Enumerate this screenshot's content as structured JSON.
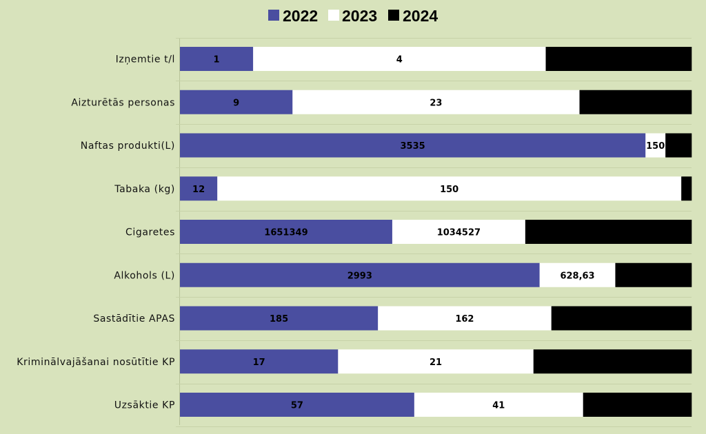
{
  "chart_data": {
    "type": "bar",
    "orientation": "horizontal",
    "stacked": "100%",
    "legend_position": "top",
    "grid": true,
    "categories": [
      "Izņemtie t/l",
      "Aizturētās personas",
      "Naftas produkti(L)",
      "Tabaka (kg)",
      "Cigaretes",
      "Alkohols (L)",
      "Sastādītie APAS",
      "Kriminālvajāšanai nosūtītie KP",
      "Uzsāktie KP"
    ],
    "series": [
      {
        "name": "2022",
        "color": "#4a4ea0",
        "shares": [
          0.143,
          0.22,
          0.91,
          0.073,
          0.415,
          0.703,
          0.387,
          0.309,
          0.458
        ],
        "labels": [
          "1",
          "9",
          "3535",
          "12",
          "1651349",
          "2993",
          "185",
          "17",
          "57"
        ]
      },
      {
        "name": "2023",
        "color": "#ffffff",
        "shares": [
          0.572,
          0.561,
          0.039,
          0.907,
          0.26,
          0.148,
          0.339,
          0.382,
          0.33
        ],
        "labels": [
          "4",
          "23",
          "150",
          "150",
          "1034527",
          "628,63",
          "162",
          "21",
          "41"
        ]
      },
      {
        "name": "2024",
        "color": "#000000",
        "shares": [
          0.285,
          0.219,
          0.051,
          0.02,
          0.325,
          0.149,
          0.274,
          0.309,
          0.212
        ],
        "labels": [
          "",
          "",
          "",
          "",
          "",
          "",
          "",
          "",
          ""
        ]
      }
    ]
  }
}
